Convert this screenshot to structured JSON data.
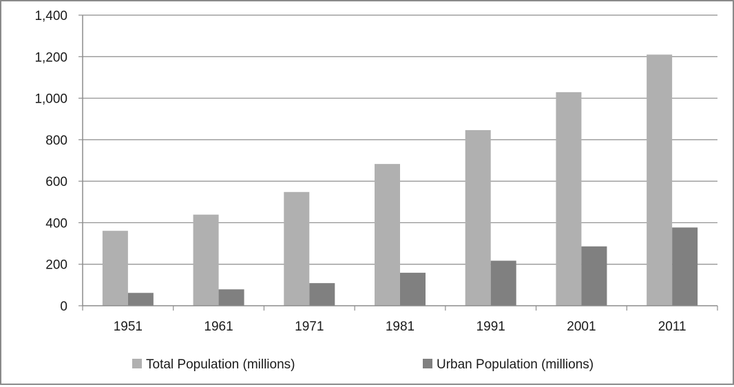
{
  "chart_data": {
    "type": "bar",
    "categories": [
      "1951",
      "1961",
      "1971",
      "1981",
      "1991",
      "2001",
      "2011"
    ],
    "series": [
      {
        "name": "Total Population (millions)",
        "color": "#b0b0b0",
        "values": [
          361,
          439,
          548,
          683,
          846,
          1029,
          1210
        ]
      },
      {
        "name": "Urban Population (millions)",
        "color": "#808080",
        "values": [
          62,
          79,
          109,
          159,
          217,
          286,
          377
        ]
      }
    ],
    "yticks": [
      "0",
      "200",
      "400",
      "600",
      "800",
      "1,000",
      "1,200",
      "1,400"
    ],
    "ylim": [
      0,
      1400
    ],
    "grid": true,
    "legend_position": "bottom",
    "title": "",
    "xlabel": "",
    "ylabel": ""
  }
}
